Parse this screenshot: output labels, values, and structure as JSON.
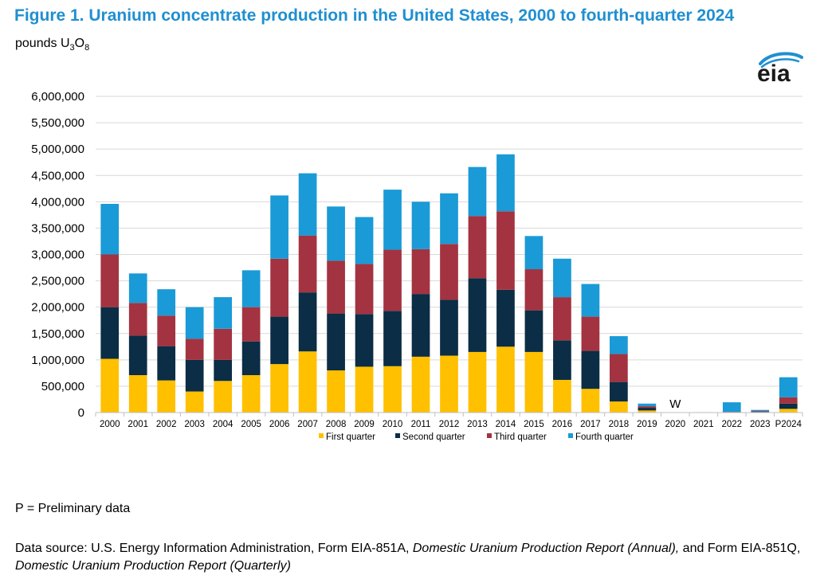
{
  "title": "Figure 1. Uranium concentrate production in the United States, 2000 to fourth-quarter 2024",
  "unit": {
    "prefix": "pounds U",
    "sub1": "3",
    "mid": "O",
    "sub2": "8"
  },
  "logo_text": "eia",
  "footnote": "P = Preliminary data",
  "source": {
    "part1": "Data source: U.S. Energy Information Administration, Form EIA-851A, ",
    "italic1": "Domestic Uranium Production Report (Annual),",
    "part2": " and Form EIA-851Q, ",
    "italic2": "Domestic Uranium Production Report (Quarterly)"
  },
  "chart_data": {
    "type": "bar",
    "stacked": true,
    "categories": [
      "2000",
      "2001",
      "2002",
      "2003",
      "2004",
      "2005",
      "2006",
      "2007",
      "2008",
      "2009",
      "2010",
      "2011",
      "2012",
      "2013",
      "2014",
      "2015",
      "2016",
      "2017",
      "2018",
      "2019",
      "2020",
      "2021",
      "2022",
      "2023",
      "P2024"
    ],
    "series": [
      {
        "name": "First quarter",
        "color": "#ffc000",
        "values": [
          1020000,
          710000,
          610000,
          400000,
          600000,
          710000,
          920000,
          1160000,
          800000,
          870000,
          880000,
          1060000,
          1080000,
          1150000,
          1250000,
          1150000,
          620000,
          450000,
          210000,
          40000,
          null,
          2000,
          5000,
          10000,
          70000
        ]
      },
      {
        "name": "Second quarter",
        "color": "#0b2d45",
        "values": [
          980000,
          750000,
          650000,
          600000,
          400000,
          640000,
          900000,
          1120000,
          1080000,
          1000000,
          1050000,
          1190000,
          1060000,
          1400000,
          1080000,
          790000,
          750000,
          720000,
          370000,
          50000,
          null,
          2000,
          5000,
          10000,
          100000
        ]
      },
      {
        "name": "Third quarter",
        "color": "#a33340",
        "values": [
          1000000,
          620000,
          580000,
          400000,
          590000,
          650000,
          1100000,
          1080000,
          1000000,
          950000,
          1160000,
          850000,
          1060000,
          1180000,
          1490000,
          780000,
          820000,
          650000,
          530000,
          30000,
          null,
          2000,
          5000,
          10000,
          120000
        ]
      },
      {
        "name": "Fourth quarter",
        "color": "#1a9ad6",
        "values": [
          960000,
          560000,
          500000,
          600000,
          600000,
          700000,
          1200000,
          1180000,
          1030000,
          890000,
          1140000,
          900000,
          960000,
          930000,
          1080000,
          630000,
          730000,
          620000,
          340000,
          50000,
          null,
          2000,
          180000,
          20000,
          380000
        ]
      }
    ],
    "annotations": [
      {
        "category": "2020",
        "text": "W"
      }
    ],
    "yticks": [
      "0",
      "500,000",
      "1,000,000",
      "1,500,000",
      "2,000,000",
      "2,500,000",
      "3,000,000",
      "3,500,000",
      "4,000,000",
      "4,500,000",
      "5,000,000",
      "5,500,000",
      "6,000,000"
    ],
    "ylim": [
      0,
      6000000
    ],
    "grid": true,
    "legend": "bottom-center"
  }
}
